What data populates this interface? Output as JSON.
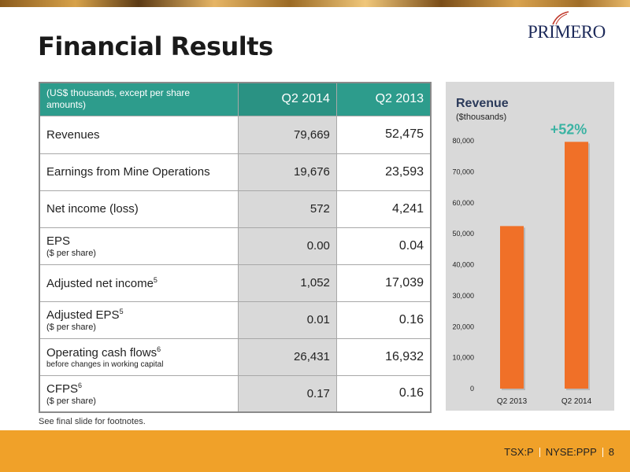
{
  "slide": {
    "title": "Financial Results",
    "logo_text": "PRIMERO",
    "footnote": "See  final slide for footnotes.",
    "page_number": "8",
    "tickers": [
      "TSX:P",
      "NYSE:PPP"
    ]
  },
  "table": {
    "header_label": "(US$ thousands, except per share amounts)",
    "columns": [
      "Q2 2014",
      "Q2 2013"
    ],
    "rows": [
      {
        "label": "Revenues",
        "sup": "",
        "sub": "",
        "q2014": "79,669",
        "q2013": "52,475"
      },
      {
        "label": "Earnings from Mine Operations",
        "sup": "",
        "sub": "",
        "q2014": "19,676",
        "q2013": "23,593"
      },
      {
        "label": "Net income (loss)",
        "sup": "",
        "sub": "",
        "q2014": "572",
        "q2013": "4,241"
      },
      {
        "label": "EPS",
        "sup": "",
        "sub": "($ per share)",
        "q2014": "0.00",
        "q2013": "0.04"
      },
      {
        "label": "Adjusted net income",
        "sup": "5",
        "sub": "",
        "q2014": "1,052",
        "q2013": "17,039"
      },
      {
        "label": "Adjusted EPS",
        "sup": "5",
        "sub": "($ per share)",
        "q2014": "0.01",
        "q2013": "0.16"
      },
      {
        "label": "Operating cash flows",
        "sup": "6",
        "sub": "before changes in working capital",
        "q2014": "26,431",
        "q2013": "16,932"
      },
      {
        "label": "CFPS",
        "sup": "6",
        "sub": "($ per share)",
        "q2014": "0.17",
        "q2013": "0.16"
      }
    ]
  },
  "colors": {
    "header_teal": "#2d9c8c",
    "bar_orange": "#f07028",
    "callout_teal": "#3bb3a3",
    "bottom_bar": "#f0a129"
  },
  "chart_data": {
    "type": "bar",
    "title": "Revenue",
    "subtitle": "($thousands)",
    "categories": [
      "Q2 2013",
      "Q2 2014"
    ],
    "values": [
      52475,
      79669
    ],
    "ylim": [
      0,
      80000
    ],
    "yticks": [
      0,
      10000,
      20000,
      30000,
      40000,
      50000,
      60000,
      70000,
      80000
    ],
    "ytick_labels": [
      "0",
      "10,000",
      "20,000",
      "30,000",
      "40,000",
      "50,000",
      "60,000",
      "70,000",
      "80,000"
    ],
    "annotation": "+52%",
    "grid": false
  }
}
